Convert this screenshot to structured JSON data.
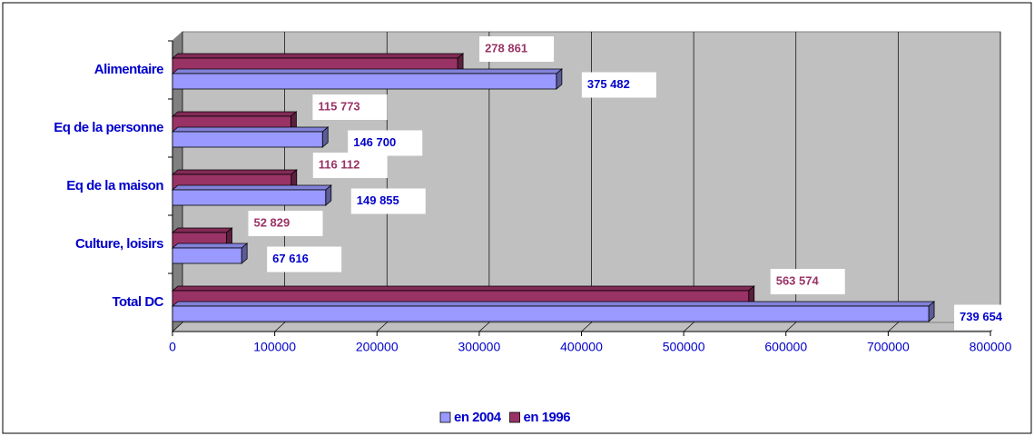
{
  "chart_data": {
    "type": "hbar3d",
    "categories": [
      "Alimentaire",
      "Eq de la personne",
      "Eq de la maison",
      "Culture, loisirs",
      "Total DC"
    ],
    "series": [
      {
        "name": "en 2004",
        "color": "#9999ff",
        "label_color": "#0000cc",
        "values": [
          375482,
          146700,
          149855,
          67616,
          739654
        ],
        "value_labels": [
          "375 482",
          "146 700",
          "149 855",
          "67 616",
          "739 654"
        ]
      },
      {
        "name": "en 1996",
        "color": "#993366",
        "label_color": "#993366",
        "values": [
          278861,
          115773,
          116112,
          52829,
          563574
        ],
        "value_labels": [
          "278 861",
          "115 773",
          "116 112",
          "52 829",
          "563 574"
        ]
      }
    ],
    "xlim": [
      0,
      800000
    ],
    "xticks": [
      0,
      100000,
      200000,
      300000,
      400000,
      500000,
      600000,
      700000,
      800000
    ],
    "grid": true,
    "legend": "bottom"
  }
}
